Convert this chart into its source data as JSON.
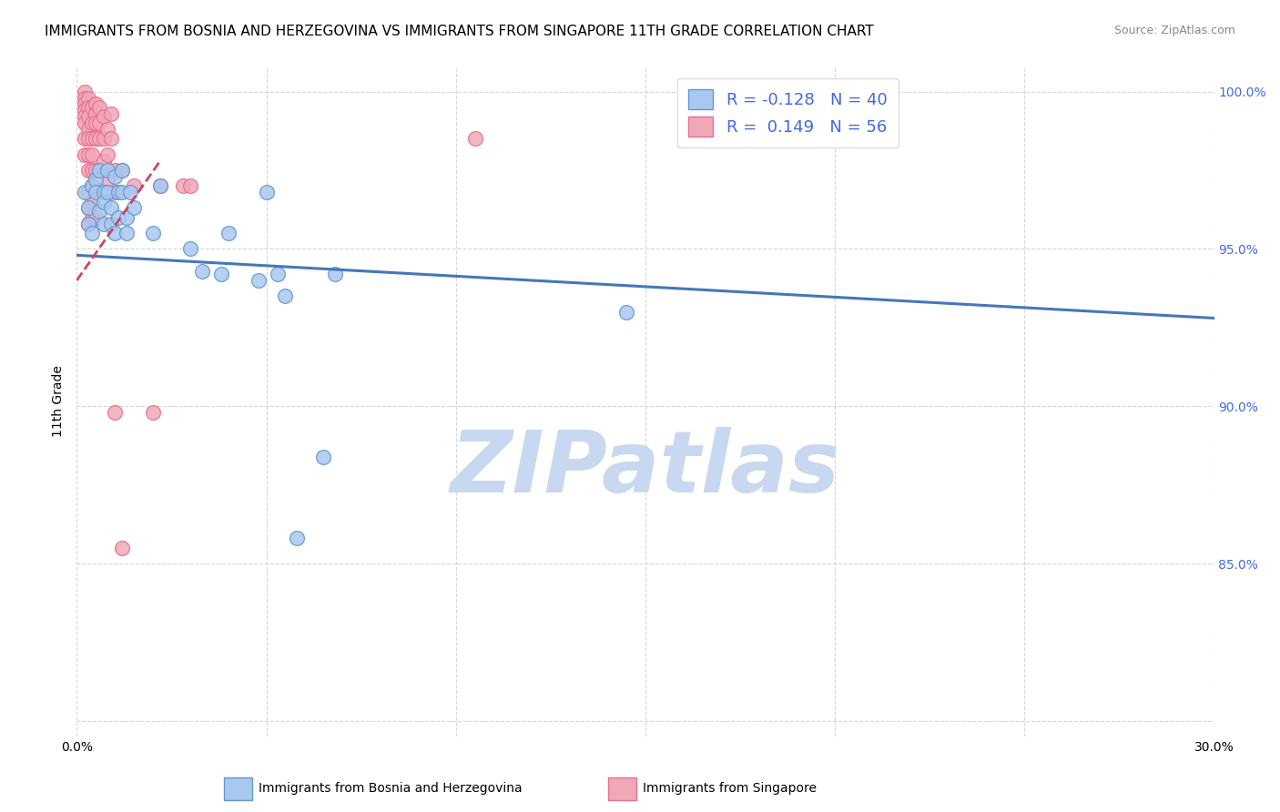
{
  "title": "IMMIGRANTS FROM BOSNIA AND HERZEGOVINA VS IMMIGRANTS FROM SINGAPORE 11TH GRADE CORRELATION CHART",
  "source": "Source: ZipAtlas.com",
  "ylabel": "11th Grade",
  "x_min": 0.0,
  "x_max": 0.3,
  "y_min": 0.795,
  "y_max": 1.008,
  "x_ticks": [
    0.0,
    0.05,
    0.1,
    0.15,
    0.2,
    0.25,
    0.3
  ],
  "y_ticks": [
    0.8,
    0.85,
    0.9,
    0.95,
    1.0
  ],
  "y_tick_labels": [
    "",
    "85.0%",
    "90.0%",
    "95.0%",
    "100.0%"
  ],
  "watermark": "ZIPatlas",
  "watermark_color": "#c8d8f0",
  "blue_scatter": [
    [
      0.002,
      0.968
    ],
    [
      0.003,
      0.963
    ],
    [
      0.003,
      0.958
    ],
    [
      0.004,
      0.955
    ],
    [
      0.004,
      0.97
    ],
    [
      0.005,
      0.972
    ],
    [
      0.005,
      0.968
    ],
    [
      0.006,
      0.962
    ],
    [
      0.006,
      0.975
    ],
    [
      0.007,
      0.968
    ],
    [
      0.007,
      0.965
    ],
    [
      0.007,
      0.958
    ],
    [
      0.008,
      0.975
    ],
    [
      0.008,
      0.968
    ],
    [
      0.009,
      0.963
    ],
    [
      0.009,
      0.958
    ],
    [
      0.01,
      0.973
    ],
    [
      0.01,
      0.955
    ],
    [
      0.011,
      0.968
    ],
    [
      0.011,
      0.96
    ],
    [
      0.012,
      0.975
    ],
    [
      0.012,
      0.968
    ],
    [
      0.013,
      0.96
    ],
    [
      0.013,
      0.955
    ],
    [
      0.014,
      0.968
    ],
    [
      0.015,
      0.963
    ],
    [
      0.02,
      0.955
    ],
    [
      0.022,
      0.97
    ],
    [
      0.03,
      0.95
    ],
    [
      0.033,
      0.943
    ],
    [
      0.038,
      0.942
    ],
    [
      0.04,
      0.955
    ],
    [
      0.048,
      0.94
    ],
    [
      0.05,
      0.968
    ],
    [
      0.053,
      0.942
    ],
    [
      0.055,
      0.935
    ],
    [
      0.058,
      0.858
    ],
    [
      0.065,
      0.884
    ],
    [
      0.068,
      0.942
    ],
    [
      0.145,
      0.93
    ]
  ],
  "pink_scatter": [
    [
      0.002,
      1.0
    ],
    [
      0.002,
      0.998
    ],
    [
      0.002,
      0.996
    ],
    [
      0.002,
      0.994
    ],
    [
      0.002,
      0.992
    ],
    [
      0.002,
      0.99
    ],
    [
      0.002,
      0.985
    ],
    [
      0.002,
      0.98
    ],
    [
      0.003,
      0.998
    ],
    [
      0.003,
      0.995
    ],
    [
      0.003,
      0.992
    ],
    [
      0.003,
      0.988
    ],
    [
      0.003,
      0.985
    ],
    [
      0.003,
      0.98
    ],
    [
      0.003,
      0.975
    ],
    [
      0.003,
      0.968
    ],
    [
      0.003,
      0.963
    ],
    [
      0.003,
      0.958
    ],
    [
      0.004,
      0.995
    ],
    [
      0.004,
      0.99
    ],
    [
      0.004,
      0.985
    ],
    [
      0.004,
      0.98
    ],
    [
      0.004,
      0.975
    ],
    [
      0.004,
      0.97
    ],
    [
      0.004,
      0.965
    ],
    [
      0.004,
      0.96
    ],
    [
      0.005,
      0.996
    ],
    [
      0.005,
      0.993
    ],
    [
      0.005,
      0.99
    ],
    [
      0.005,
      0.985
    ],
    [
      0.005,
      0.975
    ],
    [
      0.005,
      0.96
    ],
    [
      0.006,
      0.995
    ],
    [
      0.006,
      0.99
    ],
    [
      0.006,
      0.985
    ],
    [
      0.006,
      0.975
    ],
    [
      0.006,
      0.968
    ],
    [
      0.007,
      0.992
    ],
    [
      0.007,
      0.985
    ],
    [
      0.007,
      0.978
    ],
    [
      0.008,
      0.988
    ],
    [
      0.008,
      0.98
    ],
    [
      0.008,
      0.972
    ],
    [
      0.009,
      0.993
    ],
    [
      0.009,
      0.985
    ],
    [
      0.01,
      0.975
    ],
    [
      0.01,
      0.968
    ],
    [
      0.01,
      0.898
    ],
    [
      0.012,
      0.975
    ],
    [
      0.012,
      0.855
    ],
    [
      0.015,
      0.97
    ],
    [
      0.02,
      0.898
    ],
    [
      0.022,
      0.97
    ],
    [
      0.028,
      0.97
    ],
    [
      0.03,
      0.97
    ],
    [
      0.105,
      0.985
    ]
  ],
  "blue_line_x": [
    0.0,
    0.3
  ],
  "blue_line_y": [
    0.948,
    0.928
  ],
  "pink_line_x": [
    0.0,
    0.022
  ],
  "pink_line_y": [
    0.94,
    0.978
  ],
  "blue_color": "#6699cc",
  "pink_color": "#e87090",
  "blue_fill": "#a8c8f0",
  "pink_fill": "#f0a8b8",
  "blue_line_color": "#4477bb",
  "pink_line_color": "#cc4466",
  "legend_label_blue": "R = -0.128   N = 40",
  "legend_label_pink": "R =  0.149   N = 56",
  "legend_text_color": "#4169e1",
  "right_tick_color": "#4169e1",
  "title_fontsize": 11,
  "axis_fontsize": 10,
  "tick_fontsize": 10,
  "bottom_label_blue": "Immigrants from Bosnia and Herzegovina",
  "bottom_label_pink": "Immigrants from Singapore"
}
